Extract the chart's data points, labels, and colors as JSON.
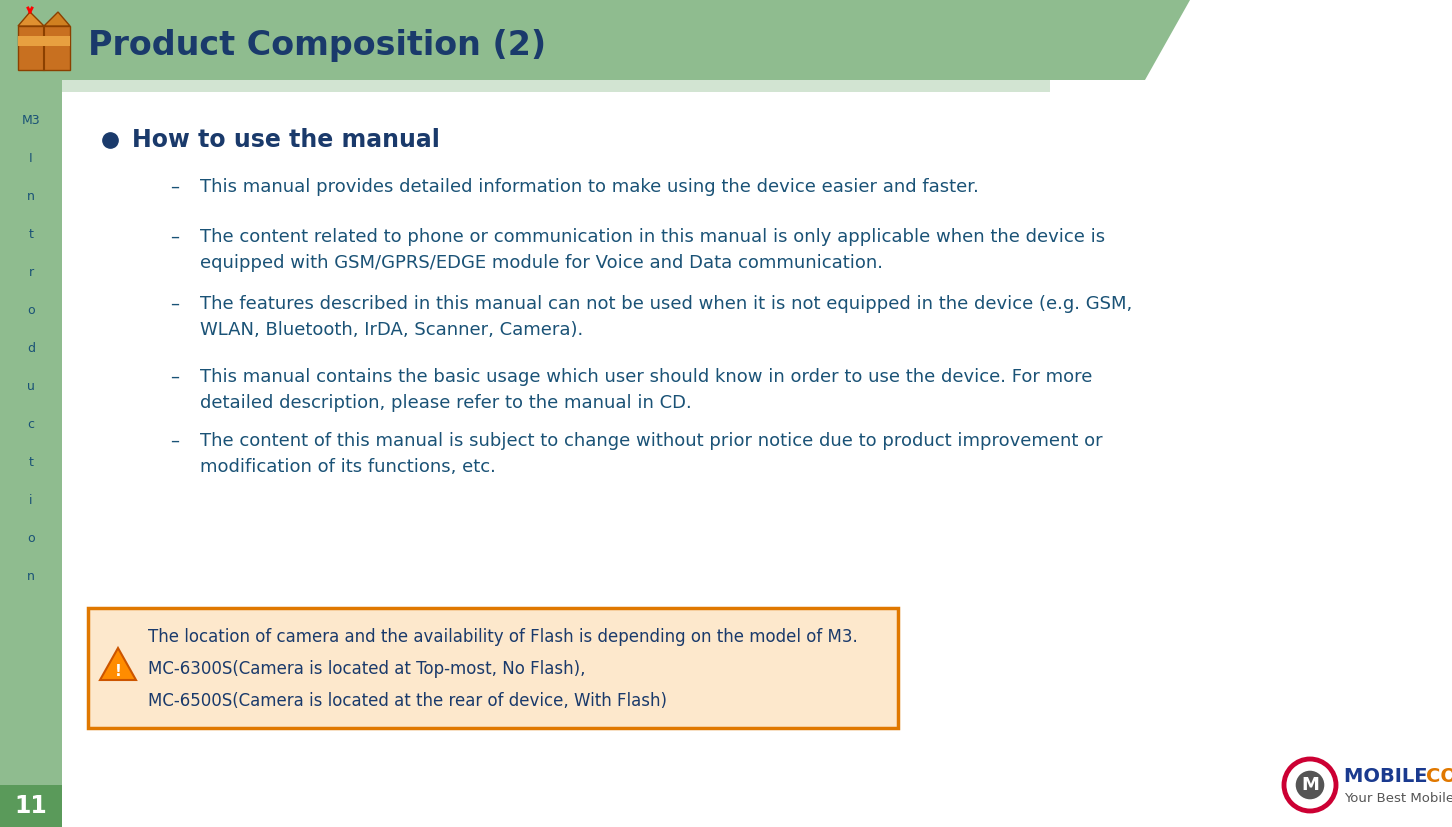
{
  "title": "Product Composition (2)",
  "title_color": "#1a3a6b",
  "header_bg_color": "#8fbc8f",
  "left_sidebar_color": "#8fbc8f",
  "left_sidebar_dark": "#6a9f6a",
  "page_number": "11",
  "page_num_color": "#ffffff",
  "page_num_bg": "#5a9a5a",
  "sidebar_chars": [
    "M3",
    "I",
    "n",
    "t",
    "r",
    "o",
    "d",
    "u",
    "c",
    "t",
    "i",
    "o",
    "n"
  ],
  "sidebar_text_color": "#1a5276",
  "main_bullet_heading": "How to use the manual",
  "heading_color": "#1a3a6b",
  "bullet_color": "#1a3a6b",
  "sub_bullets": [
    "This manual provides detailed information to make using the device easier and faster.",
    "The content related to phone or communication in this manual is only applicable when the device is\nequipped with GSM/GPRS/EDGE module for Voice and Data communication.",
    "The features described in this manual can not be used when it is not equipped in the device (e.g. GSM,\nWLAN, Bluetooth, IrDA, Scanner, Camera).",
    "This manual contains the basic usage which user should know in order to use the device. For more\ndetailed description, please refer to the manual in CD.",
    "The content of this manual is subject to change without prior notice due to product improvement or\nmodification of its functions, etc."
  ],
  "sub_bullet_color": "#1a5276",
  "note_box_bg": "#fde8cc",
  "note_box_border": "#e07800",
  "note_lines": [
    "The location of camera and the availability of Flash is depending on the model of M3.",
    "MC-6300S(Camera is located at Top-most, No Flash),",
    "MC-6500S(Camera is located at the rear of device, With Flash)"
  ],
  "note_text_color": "#1a3a6b",
  "bg_color": "#ffffff",
  "logo_circle_color": "#cc0033",
  "logo_text_color": "#1a3a8f",
  "logo_sub_color": "#555555"
}
